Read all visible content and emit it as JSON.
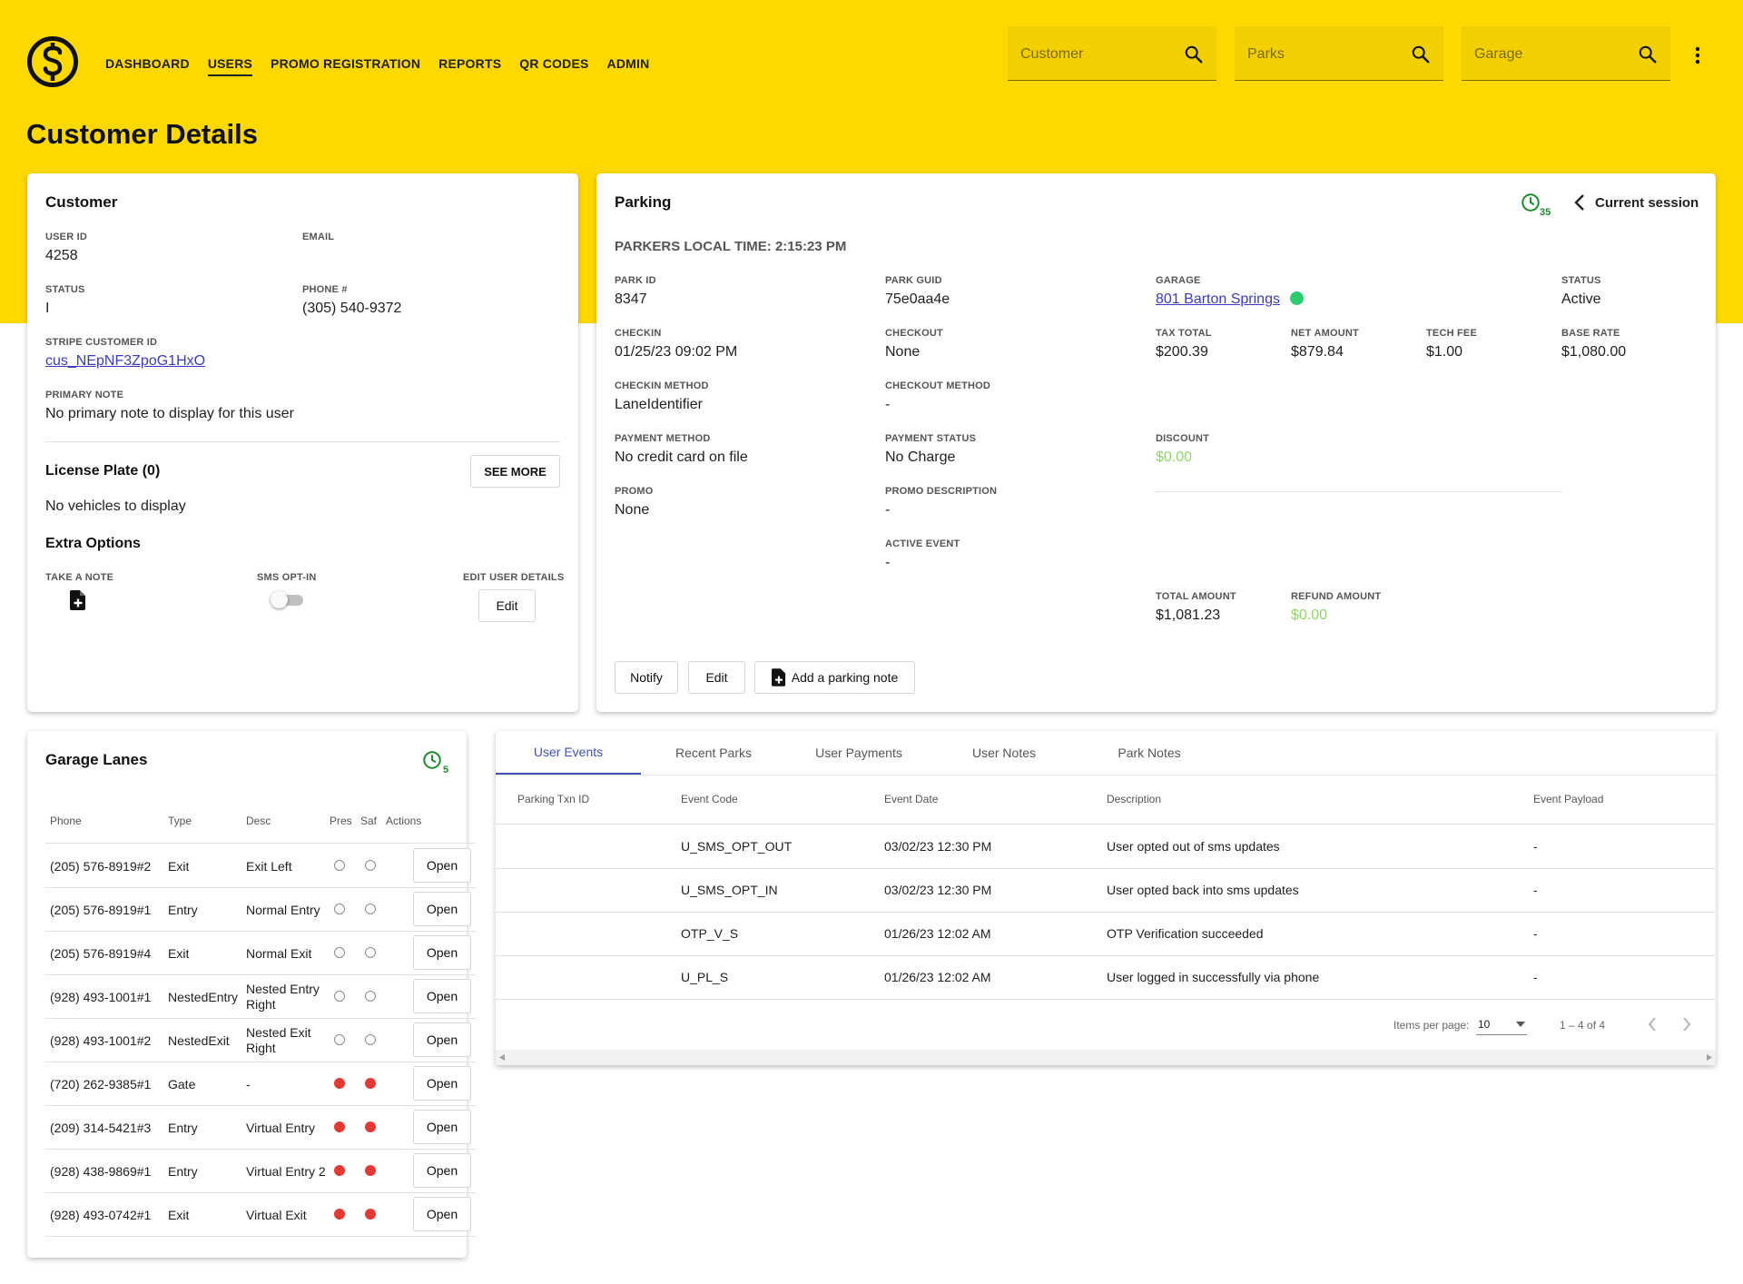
{
  "nav": {
    "items": [
      "DASHBOARD",
      "USERS",
      "PROMO REGISTRATION",
      "REPORTS",
      "QR CODES",
      "ADMIN"
    ],
    "active": "USERS"
  },
  "search": {
    "customer_placeholder": "Customer",
    "parks_placeholder": "Parks",
    "garage_placeholder": "Garage"
  },
  "page": {
    "title": "Customer Details"
  },
  "customer": {
    "title": "Customer",
    "user_id_label": "USER ID",
    "user_id": "4258",
    "email_label": "EMAIL",
    "email": "",
    "status_label": "STATUS",
    "status": "I",
    "phone_label": "PHONE #",
    "phone": "(305) 540-9372",
    "stripe_label": "STRIPE CUSTOMER ID",
    "stripe_id": "cus_NEpNF3ZpoG1HxO",
    "note_label": "PRIMARY NOTE",
    "note": "No primary note to display for this user",
    "license_title": "License Plate (0)",
    "see_more": "SEE MORE",
    "no_vehicles": "No vehicles to display",
    "extra_title": "Extra Options",
    "take_note_label": "TAKE A NOTE",
    "sms_label": "SMS OPT-IN",
    "sms_opt_in": false,
    "edit_details_label": "EDIT USER DETAILS",
    "edit_button": "Edit"
  },
  "parking": {
    "title": "Parking",
    "history_count": "35",
    "session_nav": "Current session",
    "local_time": "PARKERS LOCAL TIME: 2:15:23 PM",
    "park_id_label": "PARK ID",
    "park_id": "8347",
    "park_guid_label": "PARK GUID",
    "park_guid": "75e0aa4e",
    "garage_label": "GARAGE",
    "garage": "801 Barton Springs",
    "garage_status_color": "#2ecc71",
    "status_label": "STATUS",
    "status": "Active",
    "checkin_label": "CHECKIN",
    "checkin": "01/25/23 09:02 PM",
    "checkout_label": "CHECKOUT",
    "checkout": "None",
    "tax_label": "TAX TOTAL",
    "tax": "$200.39",
    "net_label": "NET AMOUNT",
    "net": "$879.84",
    "tech_label": "TECH FEE",
    "tech": "$1.00",
    "base_label": "BASE RATE",
    "base": "$1,080.00",
    "checkin_method_label": "CHECKIN METHOD",
    "checkin_method": "LaneIdentifier",
    "checkout_method_label": "CHECKOUT METHOD",
    "checkout_method": "-",
    "payment_method_label": "PAYMENT METHOD",
    "payment_method": "No credit card on file",
    "payment_status_label": "PAYMENT STATUS",
    "payment_status": "No Charge",
    "discount_label": "DISCOUNT",
    "discount": "$0.00",
    "promo_label": "PROMO",
    "promo": "None",
    "promo_desc_label": "PROMO DESCRIPTION",
    "promo_desc": "-",
    "active_event_label": "ACTIVE EVENT",
    "active_event": "-",
    "total_label": "TOTAL AMOUNT",
    "total": "$1,081.23",
    "refund_label": "REFUND AMOUNT",
    "refund": "$0.00",
    "notify_button": "Notify",
    "edit_button": "Edit",
    "add_note_button": "Add a parking note"
  },
  "lanes": {
    "title": "Garage Lanes",
    "history_count": "5",
    "headers": {
      "phone": "Phone",
      "type": "Type",
      "desc": "Desc",
      "pres": "Pres",
      "saf": "Saf",
      "actions": "Actions"
    },
    "open_label": "Open",
    "rows": [
      {
        "phone": "(205) 576-8919#2",
        "type": "Exit",
        "desc": "Exit Left",
        "pres": false,
        "saf": false
      },
      {
        "phone": "(205) 576-8919#1",
        "type": "Entry",
        "desc": "Normal Entry",
        "pres": false,
        "saf": false
      },
      {
        "phone": "(205) 576-8919#4",
        "type": "Exit",
        "desc": "Normal Exit",
        "pres": false,
        "saf": false
      },
      {
        "phone": "(928) 493-1001#1",
        "type": "NestedEntry",
        "desc": "Nested Entry Right",
        "pres": false,
        "saf": false
      },
      {
        "phone": "(928) 493-1001#2",
        "type": "NestedExit",
        "desc": "Nested Exit Right",
        "pres": false,
        "saf": false
      },
      {
        "phone": "(720) 262-9385#1",
        "type": "Gate",
        "desc": "-",
        "pres": true,
        "saf": true
      },
      {
        "phone": "(209) 314-5421#3",
        "type": "Entry",
        "desc": "Virtual Entry",
        "pres": true,
        "saf": true
      },
      {
        "phone": "(928) 438-9869#1",
        "type": "Entry",
        "desc": "Virtual Entry 2",
        "pres": true,
        "saf": true
      },
      {
        "phone": "(928) 493-0742#1",
        "type": "Exit",
        "desc": "Virtual Exit",
        "pres": true,
        "saf": true
      }
    ]
  },
  "events": {
    "tabs": [
      "User Events",
      "Recent Parks",
      "User Payments",
      "User Notes",
      "Park Notes"
    ],
    "active_tab": "User Events",
    "headers": {
      "txn": "Parking Txn ID",
      "code": "Event Code",
      "date": "Event Date",
      "desc": "Description",
      "payload": "Event Payload"
    },
    "rows": [
      {
        "txn": "",
        "code": "U_SMS_OPT_OUT",
        "date": "03/02/23 12:30 PM",
        "desc": "User opted out of sms updates",
        "payload": "-"
      },
      {
        "txn": "",
        "code": "U_SMS_OPT_IN",
        "date": "03/02/23 12:30 PM",
        "desc": "User opted back into sms updates",
        "payload": "-"
      },
      {
        "txn": "",
        "code": "OTP_V_S",
        "date": "01/26/23 12:02 AM",
        "desc": "OTP Verification succeeded",
        "payload": "-"
      },
      {
        "txn": "",
        "code": "U_PL_S",
        "date": "01/26/23 12:02 AM",
        "desc": "User logged in successfully via phone",
        "payload": "-"
      }
    ],
    "items_per_page_label": "Items per page:",
    "items_per_page": "10",
    "range": "1 – 4 of 4"
  },
  "colors": {
    "brand_yellow": "#FFD800",
    "history_green": "#1e8a2e",
    "active_tab": "#3f51b5",
    "lane_on": "#e53935"
  }
}
